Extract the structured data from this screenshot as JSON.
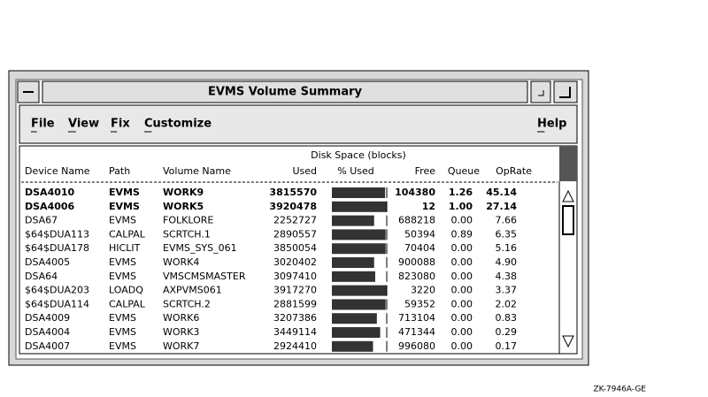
{
  "window": {
    "title": "EVMS Volume Summary"
  },
  "menu": [
    "File",
    "View",
    "Fix",
    "Customize",
    "Help"
  ],
  "table": {
    "group_header": "Disk Space (blocks)",
    "headers": [
      "Device Name",
      "Path",
      "Volume Name",
      "Used",
      "% Used",
      "Free",
      "Queue",
      "OpRate"
    ],
    "rows": [
      [
        "DSA4010",
        "EVMS",
        "WORK9",
        "3815570",
        "104380",
        "1.26",
        "45.14"
      ],
      [
        "DSA4006",
        "EVMS",
        "WORK5",
        "3920478",
        "12",
        "1.00",
        "27.14"
      ],
      [
        "DSA67",
        "EVMS",
        "FOLKLORE",
        "2252727",
        "688218",
        "0.00",
        "7.66"
      ],
      [
        "$64$DUA113",
        "CALPAL",
        "SCRTCH.1",
        "2890557",
        "50394",
        "0.89",
        "6.35"
      ],
      [
        "$64$DUA178",
        "HICLIT",
        "EVMS_SYS_061",
        "3850054",
        "70404",
        "0.00",
        "5.16"
      ],
      [
        "DSA4005",
        "EVMS",
        "WORK4",
        "3020402",
        "900088",
        "0.00",
        "4.90"
      ],
      [
        "DSA64",
        "EVMS",
        "VMSCMSMASTER",
        "3097410",
        "823080",
        "0.00",
        "4.38"
      ],
      [
        "$64$DUA203",
        "LOADQ",
        "AXPVMS061",
        "3917270",
        "3220",
        "0.00",
        "3.37"
      ],
      [
        "$64$DUA114",
        "CALPAL",
        "SCRTCH.2",
        "2881599",
        "59352",
        "0.00",
        "2.02"
      ],
      [
        "DSA4009",
        "EVMS",
        "WORK6",
        "3207386",
        "713104",
        "0.00",
        "0.83"
      ],
      [
        "DSA4004",
        "EVMS",
        "WORK3",
        "3449114",
        "471344",
        "0.00",
        "0.29"
      ],
      [
        "DSA4007",
        "EVMS",
        "WORK7",
        "2924410",
        "996080",
        "0.00",
        "0.17"
      ]
    ],
    "pct_lim": [
      0,
      100
    ],
    "pct_used": [
      97,
      100,
      77,
      98,
      98,
      77,
      79,
      100,
      98,
      82,
      88,
      75
    ]
  },
  "figure_id": "ZK-7946A-GE"
}
